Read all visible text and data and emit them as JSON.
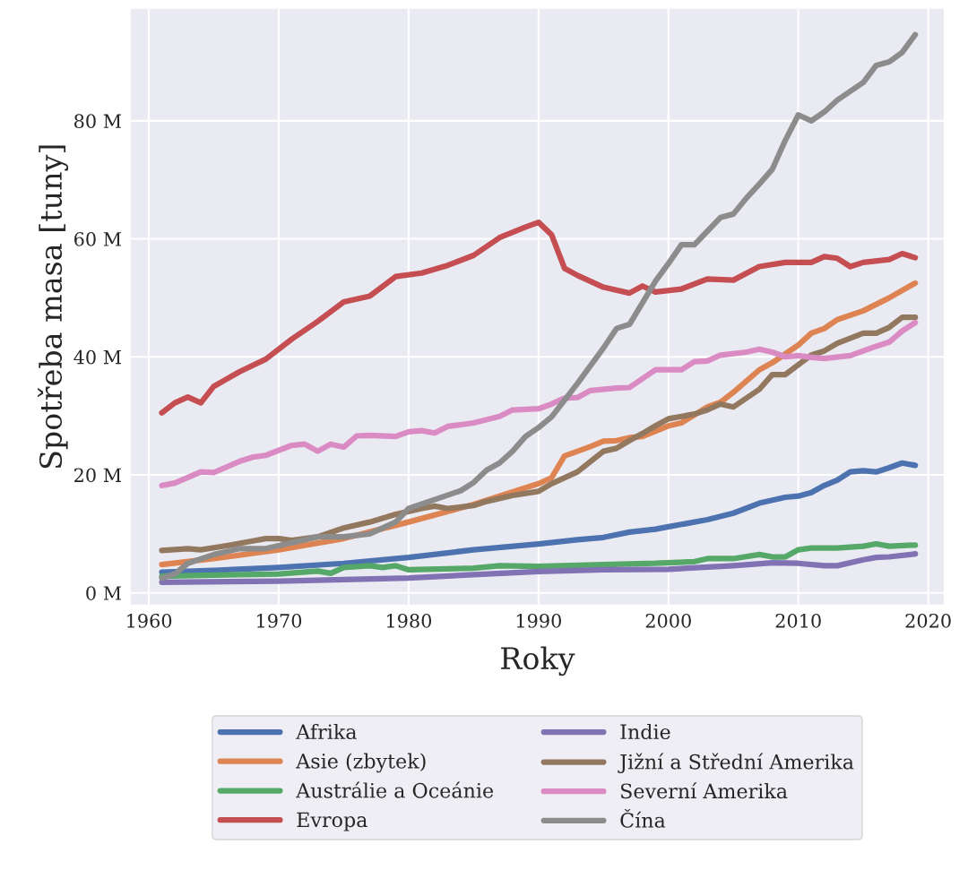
{
  "chart_data": {
    "type": "line",
    "xlabel": "Roky",
    "ylabel": "Spotřeba masa [tuny]",
    "xlim": [
      1958.6,
      2021.2
    ],
    "ylim": [
      -2,
      99
    ],
    "xticks": [
      1960,
      1970,
      1980,
      1990,
      2000,
      2010,
      2020
    ],
    "yticks": [
      {
        "value": 0,
        "label": "0 M"
      },
      {
        "value": 20,
        "label": "20 M"
      },
      {
        "value": 40,
        "label": "40 M"
      },
      {
        "value": 60,
        "label": "60 M"
      },
      {
        "value": 80,
        "label": "80 M"
      }
    ],
    "grid": true,
    "legend": "bottom",
    "line_style": "solid",
    "marker": "none",
    "series": [
      {
        "name": "Afrika",
        "color": "#4c72b0",
        "x": [
          1961,
          1965,
          1970,
          1975,
          1980,
          1985,
          1990,
          1993,
          1995,
          1997,
          1999,
          2000,
          2001,
          2003,
          2005,
          2007,
          2009,
          2010,
          2011,
          2012,
          2013,
          2014,
          2015,
          2016,
          2017,
          2018,
          2019
        ],
        "values": [
          3.5,
          3.8,
          4.3,
          5,
          6,
          7.3,
          8.3,
          9,
          9.4,
          10.3,
          10.8,
          11.2,
          11.6,
          12.4,
          13.5,
          15.2,
          16.2,
          16.4,
          17,
          18.2,
          19.1,
          20.5,
          20.7,
          20.5,
          21.2,
          22,
          21.6
        ]
      },
      {
        "name": "Asie (zbytek)",
        "color": "#dd8452",
        "x": [
          1961,
          1965,
          1970,
          1975,
          1980,
          1985,
          1990,
          1991,
          1992,
          1994,
          1995,
          1996,
          1997,
          1998,
          2000,
          2001,
          2003,
          2004,
          2005,
          2007,
          2008,
          2010,
          2011,
          2012,
          2013,
          2015,
          2017,
          2019
        ],
        "values": [
          4.8,
          5.8,
          7.3,
          9.2,
          12,
          15,
          18.5,
          19.5,
          23.2,
          24.8,
          25.7,
          25.8,
          26.3,
          26.5,
          28.3,
          28.8,
          31.5,
          32.3,
          34,
          37.8,
          39,
          42,
          44,
          44.8,
          46.3,
          47.8,
          50,
          52.5
        ]
      },
      {
        "name": "Austrálie a Oceánie",
        "color": "#55a868",
        "x": [
          1961,
          1965,
          1970,
          1973,
          1974,
          1975,
          1977,
          1978,
          1979,
          1980,
          1985,
          1987,
          1990,
          1995,
          1999,
          2002,
          2003,
          2005,
          2007,
          2008,
          2009,
          2010,
          2011,
          2013,
          2015,
          2016,
          2017,
          2019
        ],
        "values": [
          2.8,
          3,
          3.2,
          3.7,
          3.3,
          4.3,
          4.6,
          4.3,
          4.6,
          3.9,
          4.2,
          4.6,
          4.5,
          4.8,
          5,
          5.3,
          5.8,
          5.8,
          6.5,
          6.1,
          6.1,
          7.3,
          7.6,
          7.6,
          7.9,
          8.3,
          7.9,
          8.1
        ]
      },
      {
        "name": "Evropa",
        "color": "#c44e52",
        "x": [
          1961,
          1962,
          1963,
          1964,
          1965,
          1967,
          1969,
          1971,
          1973,
          1975,
          1977,
          1979,
          1981,
          1983,
          1985,
          1987,
          1989,
          1990,
          1991,
          1992,
          1993,
          1995,
          1997,
          1998,
          1999,
          2001,
          2003,
          2005,
          2007,
          2009,
          2011,
          2012,
          2013,
          2014,
          2015,
          2017,
          2018,
          2019
        ],
        "values": [
          30.5,
          32.2,
          33.2,
          32.2,
          35,
          37.5,
          39.6,
          43,
          46,
          49.3,
          50.3,
          53.6,
          54.2,
          55.5,
          57.2,
          60.2,
          62,
          62.8,
          60.7,
          55,
          53.8,
          51.8,
          50.8,
          52,
          51,
          51.5,
          53.2,
          53,
          55.3,
          56,
          56,
          57,
          56.7,
          55.3,
          56,
          56.5,
          57.5,
          56.8
        ]
      },
      {
        "name": "Indie",
        "color": "#8172b3",
        "x": [
          1961,
          1970,
          1980,
          1985,
          1990,
          1995,
          2000,
          2005,
          2008,
          2010,
          2012,
          2013,
          2015,
          2016,
          2017,
          2019
        ],
        "values": [
          1.8,
          2,
          2.5,
          3.1,
          3.6,
          3.9,
          4,
          4.6,
          5.1,
          5,
          4.6,
          4.6,
          5.6,
          6,
          6.1,
          6.6
        ]
      },
      {
        "name": "Jižní a Střední Amerika",
        "color": "#937860",
        "x": [
          1961,
          1963,
          1964,
          1966,
          1968,
          1969,
          1970,
          1971,
          1973,
          1975,
          1977,
          1979,
          1981,
          1982,
          1983,
          1985,
          1986,
          1988,
          1990,
          1991,
          1993,
          1995,
          1996,
          1997,
          1998,
          1999,
          2000,
          2002,
          2003,
          2004,
          2005,
          2007,
          2008,
          2009,
          2011,
          2012,
          2013,
          2015,
          2016,
          2017,
          2018,
          2019
        ],
        "values": [
          7.2,
          7.5,
          7.3,
          8,
          8.8,
          9.2,
          9.2,
          8.9,
          9.5,
          11,
          12,
          13.3,
          14.3,
          14.7,
          14.3,
          14.8,
          15.5,
          16.5,
          17.2,
          18.5,
          20.5,
          24,
          24.5,
          25.8,
          27,
          28.3,
          29.5,
          30.3,
          31,
          32,
          31.5,
          34.5,
          37,
          37,
          40.3,
          41,
          42.3,
          44,
          44,
          45,
          46.7,
          46.7
        ]
      },
      {
        "name": "Severní Amerika",
        "color": "#da8bc3",
        "x": [
          1961,
          1962,
          1964,
          1965,
          1967,
          1968,
          1969,
          1971,
          1972,
          1973,
          1974,
          1975,
          1976,
          1977,
          1979,
          1980,
          1981,
          1982,
          1983,
          1985,
          1987,
          1988,
          1990,
          1991,
          1992,
          1993,
          1994,
          1996,
          1997,
          1999,
          2000,
          2001,
          2002,
          2003,
          2004,
          2006,
          2007,
          2008,
          2009,
          2010,
          2011,
          2012,
          2014,
          2016,
          2017,
          2018,
          2019
        ],
        "values": [
          18.2,
          18.6,
          20.5,
          20.4,
          22.3,
          23,
          23.3,
          25,
          25.2,
          24,
          25.2,
          24.7,
          26.6,
          26.7,
          26.5,
          27.3,
          27.5,
          27.1,
          28.2,
          28.8,
          29.9,
          31,
          31.2,
          32,
          33,
          33.1,
          34.3,
          34.7,
          34.8,
          37.8,
          37.8,
          37.8,
          39.2,
          39.3,
          40.3,
          40.8,
          41.3,
          40.8,
          40,
          40.2,
          39.9,
          39.7,
          40.2,
          41.8,
          42.5,
          44.4,
          45.8
        ]
      },
      {
        "name": "Čína",
        "color": "#8c8c8c",
        "x": [
          1961,
          1962,
          1963,
          1965,
          1967,
          1969,
          1971,
          1973,
          1975,
          1977,
          1979,
          1980,
          1982,
          1984,
          1985,
          1986,
          1987,
          1988,
          1989,
          1990,
          1991,
          1993,
          1995,
          1996,
          1997,
          1999,
          2000,
          2001,
          2002,
          2003,
          2004,
          2005,
          2006,
          2007,
          2008,
          2009,
          2010,
          2011,
          2012,
          2013,
          2015,
          2016,
          2017,
          2018,
          2019
        ],
        "values": [
          2.5,
          3.2,
          5,
          6.5,
          7.5,
          7.5,
          8.5,
          9.5,
          9.5,
          10,
          12,
          14.3,
          15.8,
          17.3,
          18.7,
          20.8,
          22,
          24,
          26.5,
          28,
          29.8,
          35.5,
          41.5,
          44.8,
          45.5,
          52.8,
          55.8,
          59,
          59,
          61.3,
          63.6,
          64.2,
          66.9,
          69.3,
          71.8,
          76.7,
          81,
          80,
          81.5,
          83.5,
          86.5,
          89.4,
          90,
          91.6,
          94.6
        ]
      }
    ]
  }
}
